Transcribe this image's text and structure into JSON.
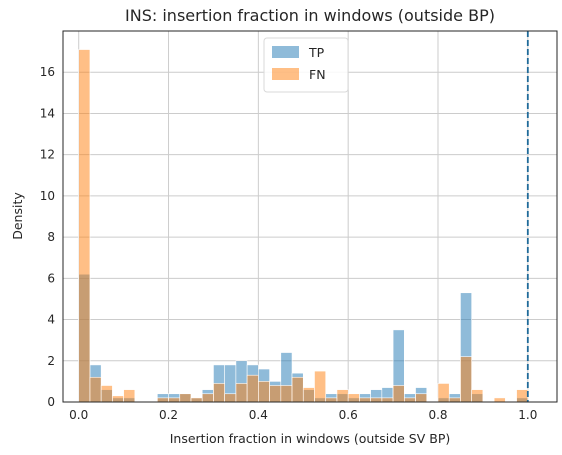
{
  "chart_data": {
    "type": "bar",
    "title": "INS: insertion fraction in windows (outside BP)",
    "xlabel": "Insertion fraction in windows (outside SV BP)",
    "ylabel": "Density",
    "xlim": [
      -0.035,
      1.065
    ],
    "ylim": [
      0,
      18
    ],
    "xticks": [
      "0.0",
      "0.2",
      "0.4",
      "0.6",
      "0.8",
      "1.0"
    ],
    "yticks": [
      "0",
      "2",
      "4",
      "6",
      "8",
      "10",
      "12",
      "14",
      "16"
    ],
    "grid": true,
    "legend_position": "top-center",
    "bin_width": 0.025,
    "bin_start": 0.0,
    "vline": {
      "x": 1.0,
      "style": "dashed",
      "color": "#1f6a99"
    },
    "series": [
      {
        "name": "TP",
        "color": "#1f77b4",
        "values": [
          6.2,
          1.8,
          0.6,
          0.2,
          0.2,
          0,
          0,
          0.4,
          0.4,
          0.4,
          0.2,
          0.6,
          1.8,
          1.8,
          2.0,
          1.8,
          1.6,
          1.0,
          2.4,
          1.4,
          0.6,
          0.2,
          0.4,
          0.4,
          0.2,
          0.4,
          0.6,
          0.7,
          3.5,
          0.4,
          0.7,
          0,
          0.2,
          0.4,
          5.3,
          0.4,
          0,
          0,
          0,
          0.2
        ]
      },
      {
        "name": "FN",
        "color": "#ff7f0e",
        "values": [
          17.1,
          1.2,
          0.8,
          0.3,
          0.6,
          0,
          0,
          0.2,
          0.2,
          0.4,
          0.2,
          0.4,
          0.9,
          0.4,
          0.9,
          1.3,
          1.0,
          0.8,
          0.8,
          1.2,
          0.7,
          1.5,
          0.2,
          0.6,
          0.4,
          0.2,
          0.2,
          0.2,
          0.8,
          0.2,
          0.4,
          0,
          0.9,
          0.2,
          2.2,
          0.6,
          0,
          0.2,
          0,
          0.6
        ]
      }
    ]
  }
}
